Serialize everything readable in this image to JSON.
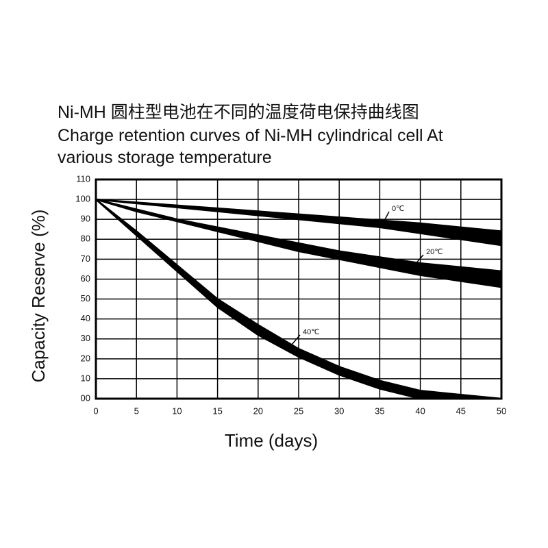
{
  "chart_data": {
    "type": "band",
    "title": [
      "Ni-MH 圆柱型电池在不同的温度荷电保持曲线图",
      "Charge retention curves of Ni-MH cylindrical cell At",
      "various storage temperature"
    ],
    "x_label": "Time (days)",
    "y_label": "Capacity Reserve (%)",
    "x": [
      0,
      5,
      10,
      15,
      20,
      25,
      30,
      35,
      40,
      45,
      50
    ],
    "series": [
      {
        "name": "0℃",
        "color": "#000000",
        "upper": [
          100,
          98.5,
          97,
          95.5,
          94,
          92.5,
          91,
          89.5,
          88,
          86,
          84
        ],
        "lower": [
          100,
          98,
          96,
          94,
          92,
          90,
          88,
          86,
          83,
          80,
          77
        ]
      },
      {
        "name": "20℃",
        "color": "#000000",
        "upper": [
          100,
          95,
          90,
          86,
          82,
          78,
          74,
          71,
          68,
          66,
          64
        ],
        "lower": [
          100,
          94,
          89,
          84,
          79,
          74,
          70,
          66,
          62,
          59,
          56
        ]
      },
      {
        "name": "40℃",
        "color": "#000000",
        "upper": [
          100,
          84,
          67,
          50,
          37,
          25,
          16,
          9,
          4,
          2,
          0
        ],
        "lower": [
          100,
          82,
          64,
          46,
          32,
          21,
          12,
          5,
          0,
          0,
          0
        ]
      }
    ],
    "xlim": [
      0,
      50
    ],
    "xticks": [
      0,
      5,
      10,
      15,
      20,
      25,
      30,
      35,
      40,
      45,
      50
    ],
    "ylim": [
      0,
      110
    ],
    "yticks": [
      {
        "value": 0,
        "label": "00"
      },
      10,
      20,
      30,
      40,
      50,
      60,
      70,
      80,
      90,
      100,
      110
    ],
    "grid": true
  }
}
